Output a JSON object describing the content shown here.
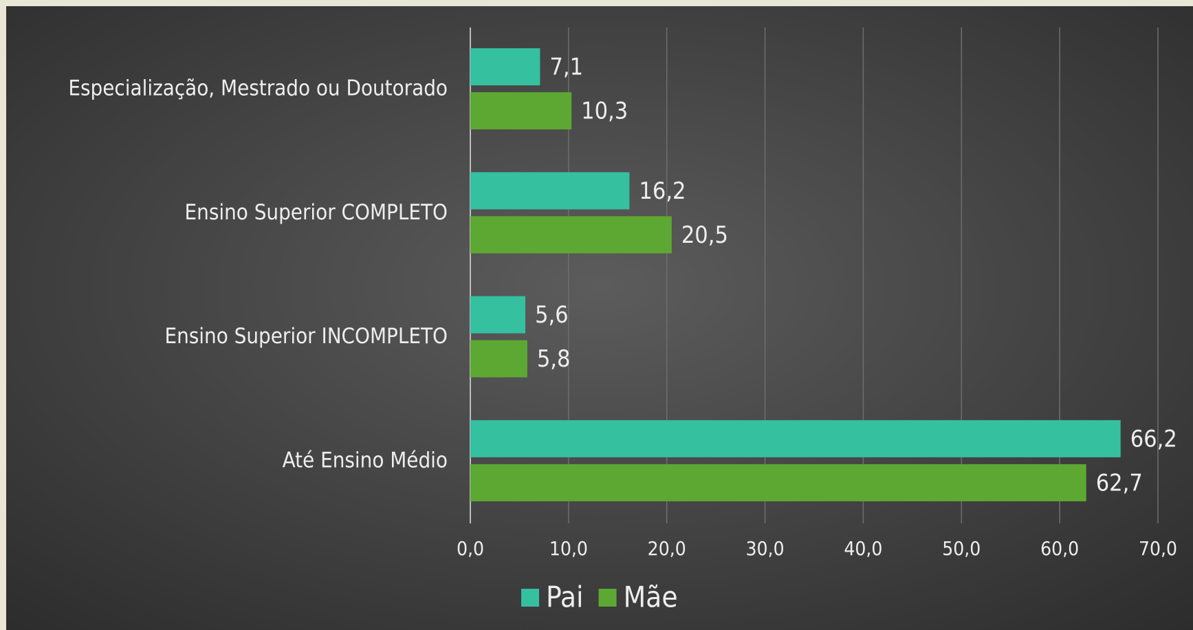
{
  "chart_data": {
    "type": "hbar",
    "categories": [
      "Especialização, Mestrado ou Doutorado",
      "Ensino Superior COMPLETO",
      "Ensino Superior INCOMPLETO",
      "Até Ensino Médio"
    ],
    "series": [
      {
        "name": "Pai",
        "color": "#35c0a0",
        "values": [
          7.1,
          16.2,
          5.6,
          66.2
        ],
        "value_labels": [
          "7,1",
          "16,2",
          "5,6",
          "66,2"
        ]
      },
      {
        "name": "Mãe",
        "color": "#5da832",
        "values": [
          10.3,
          20.5,
          5.8,
          62.7
        ],
        "value_labels": [
          "10,3",
          "20,5",
          "5,8",
          "62,7"
        ]
      }
    ],
    "xlim": [
      0,
      70
    ],
    "xticks": [
      {
        "value": 0,
        "label": "0,0"
      },
      {
        "value": 10,
        "label": "10,0"
      },
      {
        "value": 20,
        "label": "20,0"
      },
      {
        "value": 30,
        "label": "30,0"
      },
      {
        "value": 40,
        "label": "40,0"
      },
      {
        "value": 50,
        "label": "50,0"
      },
      {
        "value": 60,
        "label": "60,0"
      },
      {
        "value": 70,
        "label": "70,0"
      }
    ],
    "grid": true,
    "legend": "bottom"
  }
}
